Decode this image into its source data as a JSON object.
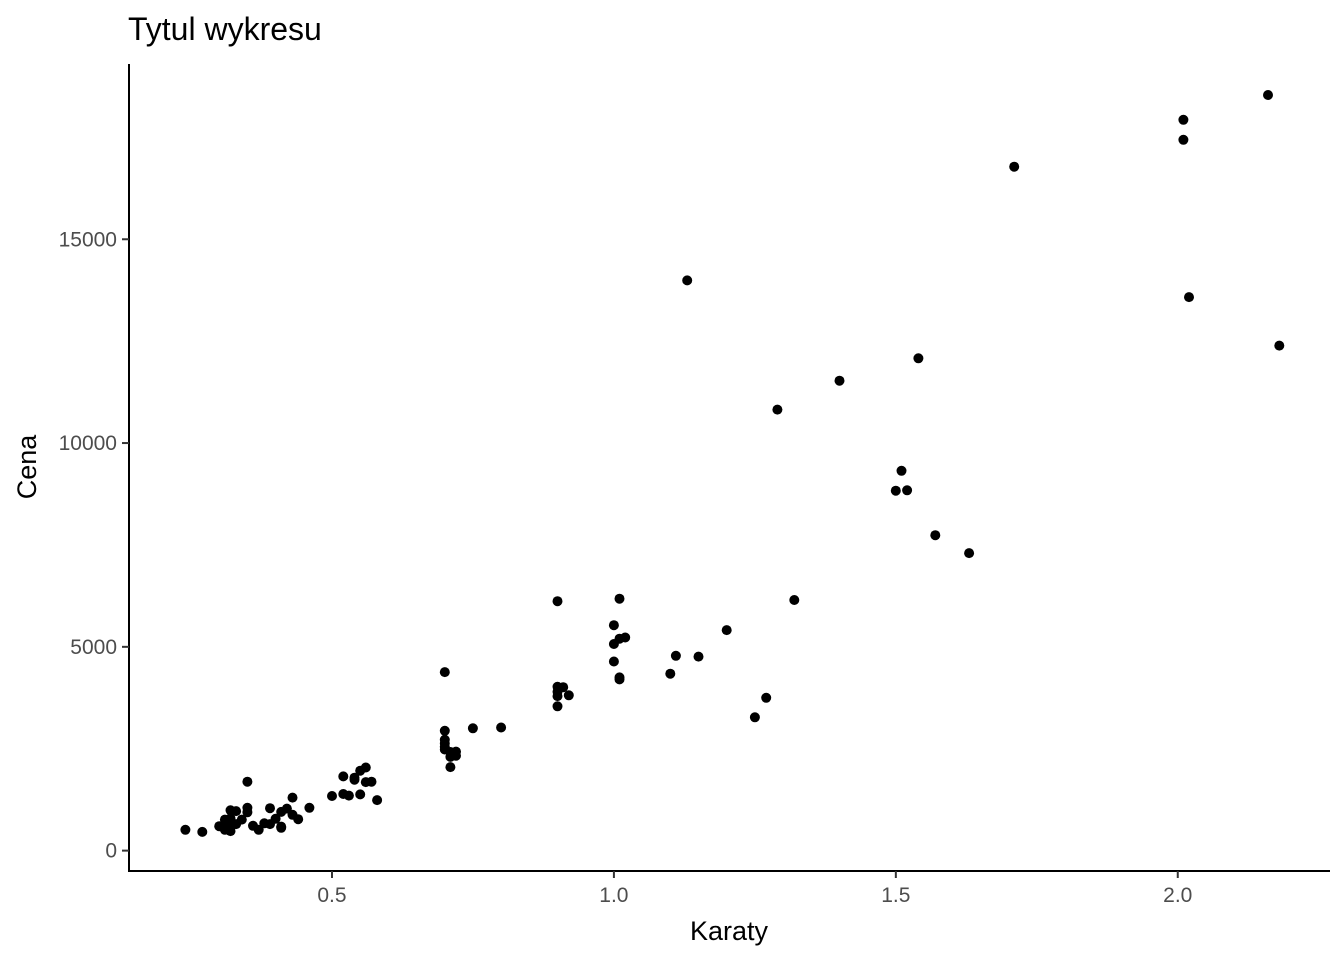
{
  "chart_data": {
    "type": "scatter",
    "title": "Tytul wykresu",
    "xlabel": "Karaty",
    "ylabel": "Cena",
    "xlim": [
      0.14,
      2.27
    ],
    "ylim": [
      -500,
      19300
    ],
    "x_ticks": [
      0.5,
      1.0,
      1.5,
      2.0
    ],
    "x_tick_labels": [
      "0.5",
      "1.0",
      "1.5",
      "2.0"
    ],
    "y_ticks": [
      0,
      5000,
      10000,
      15000
    ],
    "y_tick_labels": [
      "0",
      "5000",
      "10000",
      "15000"
    ],
    "grid": false,
    "legend": "none",
    "point_color": "#000000",
    "points": [
      {
        "x": 2.16,
        "y": 18540
      },
      {
        "x": 2.01,
        "y": 17930
      },
      {
        "x": 2.01,
        "y": 17440
      },
      {
        "x": 1.71,
        "y": 16780
      },
      {
        "x": 1.13,
        "y": 13990
      },
      {
        "x": 2.02,
        "y": 13580
      },
      {
        "x": 2.18,
        "y": 12390
      },
      {
        "x": 1.54,
        "y": 12080
      },
      {
        "x": 1.4,
        "y": 11530
      },
      {
        "x": 1.29,
        "y": 10820
      },
      {
        "x": 1.51,
        "y": 9320
      },
      {
        "x": 1.5,
        "y": 8830
      },
      {
        "x": 1.52,
        "y": 8840
      },
      {
        "x": 1.57,
        "y": 7740
      },
      {
        "x": 1.63,
        "y": 7300
      },
      {
        "x": 1.32,
        "y": 6150
      },
      {
        "x": 1.01,
        "y": 6180
      },
      {
        "x": 0.9,
        "y": 6120
      },
      {
        "x": 1.0,
        "y": 5530
      },
      {
        "x": 1.2,
        "y": 5410
      },
      {
        "x": 1.02,
        "y": 5230
      },
      {
        "x": 1.01,
        "y": 5200
      },
      {
        "x": 1.0,
        "y": 5070
      },
      {
        "x": 1.11,
        "y": 4780
      },
      {
        "x": 1.15,
        "y": 4760
      },
      {
        "x": 1.0,
        "y": 4640
      },
      {
        "x": 1.1,
        "y": 4340
      },
      {
        "x": 1.01,
        "y": 4250
      },
      {
        "x": 1.01,
        "y": 4200
      },
      {
        "x": 0.7,
        "y": 4380
      },
      {
        "x": 0.9,
        "y": 4020
      },
      {
        "x": 0.91,
        "y": 4010
      },
      {
        "x": 0.9,
        "y": 3900
      },
      {
        "x": 0.92,
        "y": 3810
      },
      {
        "x": 0.9,
        "y": 3790
      },
      {
        "x": 0.9,
        "y": 3540
      },
      {
        "x": 1.27,
        "y": 3750
      },
      {
        "x": 1.25,
        "y": 3270
      },
      {
        "x": 0.75,
        "y": 3000
      },
      {
        "x": 0.8,
        "y": 3020
      },
      {
        "x": 0.7,
        "y": 2940
      },
      {
        "x": 0.7,
        "y": 2720
      },
      {
        "x": 0.7,
        "y": 2630
      },
      {
        "x": 0.7,
        "y": 2550
      },
      {
        "x": 0.7,
        "y": 2480
      },
      {
        "x": 0.71,
        "y": 2420
      },
      {
        "x": 0.72,
        "y": 2430
      },
      {
        "x": 0.72,
        "y": 2330
      },
      {
        "x": 0.71,
        "y": 2300
      },
      {
        "x": 0.71,
        "y": 2050
      },
      {
        "x": 0.56,
        "y": 2040
      },
      {
        "x": 0.55,
        "y": 1960
      },
      {
        "x": 0.52,
        "y": 1820
      },
      {
        "x": 0.54,
        "y": 1790
      },
      {
        "x": 0.54,
        "y": 1740
      },
      {
        "x": 0.56,
        "y": 1680
      },
      {
        "x": 0.57,
        "y": 1690
      },
      {
        "x": 0.35,
        "y": 1690
      },
      {
        "x": 0.52,
        "y": 1390
      },
      {
        "x": 0.53,
        "y": 1350
      },
      {
        "x": 0.55,
        "y": 1380
      },
      {
        "x": 0.5,
        "y": 1340
      },
      {
        "x": 0.58,
        "y": 1240
      },
      {
        "x": 0.43,
        "y": 1300
      },
      {
        "x": 0.46,
        "y": 1050
      },
      {
        "x": 0.39,
        "y": 1040
      },
      {
        "x": 0.42,
        "y": 1030
      },
      {
        "x": 0.35,
        "y": 1050
      },
      {
        "x": 0.35,
        "y": 940
      },
      {
        "x": 0.32,
        "y": 990
      },
      {
        "x": 0.33,
        "y": 970
      },
      {
        "x": 0.41,
        "y": 950
      },
      {
        "x": 0.43,
        "y": 880
      },
      {
        "x": 0.44,
        "y": 770
      },
      {
        "x": 0.4,
        "y": 780
      },
      {
        "x": 0.34,
        "y": 760
      },
      {
        "x": 0.32,
        "y": 790
      },
      {
        "x": 0.31,
        "y": 760
      },
      {
        "x": 0.38,
        "y": 670
      },
      {
        "x": 0.39,
        "y": 650
      },
      {
        "x": 0.33,
        "y": 650
      },
      {
        "x": 0.31,
        "y": 630
      },
      {
        "x": 0.3,
        "y": 600
      },
      {
        "x": 0.36,
        "y": 610
      },
      {
        "x": 0.41,
        "y": 590
      },
      {
        "x": 0.41,
        "y": 560
      },
      {
        "x": 0.32,
        "y": 560
      },
      {
        "x": 0.37,
        "y": 510
      },
      {
        "x": 0.31,
        "y": 510
      },
      {
        "x": 0.32,
        "y": 480
      },
      {
        "x": 0.24,
        "y": 510
      },
      {
        "x": 0.27,
        "y": 460
      }
    ]
  }
}
